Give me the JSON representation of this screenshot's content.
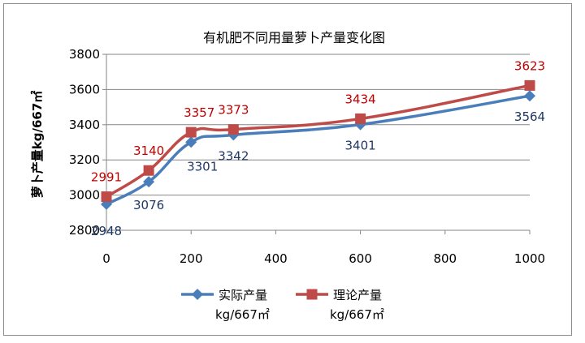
{
  "chart_data": {
    "type": "line",
    "title": "有机肥不同用量萝卜产量变化图",
    "xlabel": "",
    "ylabel": "萝卜产量kg/667㎡",
    "x": [
      0,
      100,
      200,
      300,
      600,
      1000
    ],
    "xlim": [
      0,
      1000
    ],
    "xticks": [
      0,
      200,
      400,
      600,
      800,
      1000
    ],
    "ylim": [
      2800,
      3800
    ],
    "yticks": [
      2800,
      3000,
      3200,
      3400,
      3600,
      3800
    ],
    "grid": "horizontal",
    "legend_position": "bottom",
    "series": [
      {
        "name": "实际产量",
        "name_unit": "kg/667㎡",
        "color": "#4a7ebb",
        "label_color": "#1f3864",
        "marker": "diamond",
        "values": [
          2948,
          3076,
          3301,
          3342,
          3401,
          3564
        ]
      },
      {
        "name": "理论产量",
        "name_unit": "kg/667㎡",
        "color": "#be4b48",
        "label_color": "#c00000",
        "marker": "square",
        "values": [
          2991,
          3140,
          3357,
          3373,
          3434,
          3623
        ]
      }
    ]
  }
}
